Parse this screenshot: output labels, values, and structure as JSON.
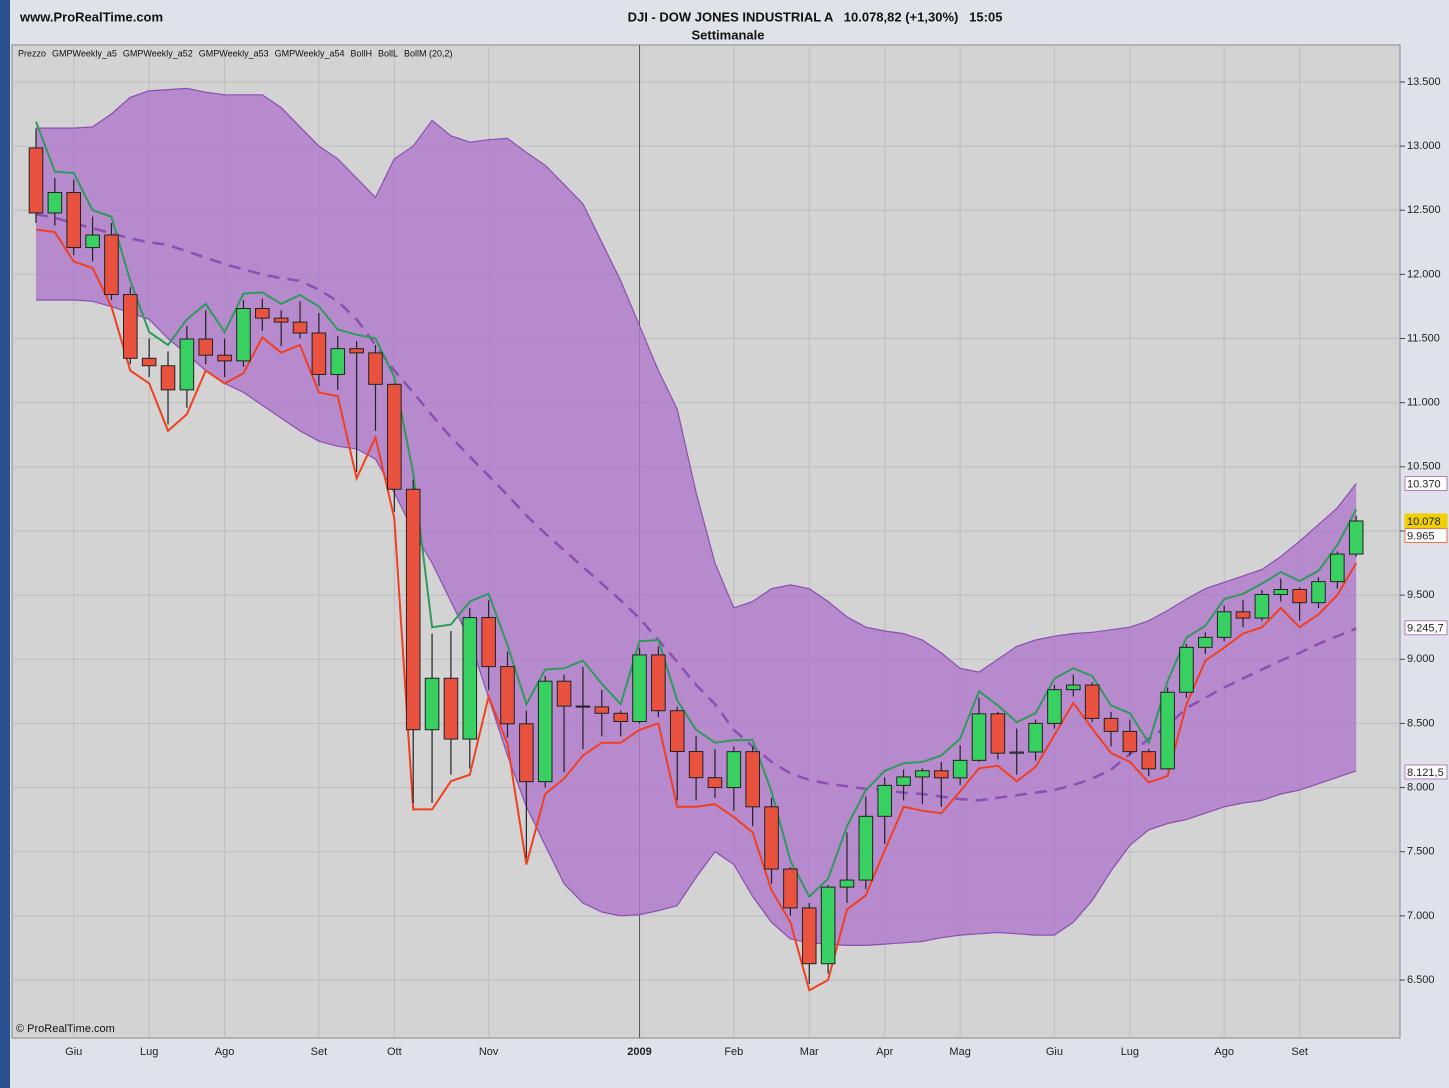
{
  "chart_data": {
    "type": "candlestick",
    "site": "www.ProRealTime.com",
    "title": "DJI - DOW JONES INDUSTRIAL A   10.078,82 (+1,30%)   15:05",
    "subtitle": "Settimanale",
    "watermark": "© ProRealTime.com",
    "categories": [
      null,
      null,
      "Giu",
      null,
      null,
      null,
      "Lug",
      null,
      null,
      null,
      "Ago",
      null,
      null,
      null,
      null,
      "Set",
      null,
      null,
      null,
      "Ott",
      null,
      null,
      null,
      null,
      "Nov",
      null,
      null,
      null,
      null,
      null,
      null,
      null,
      "2009",
      null,
      null,
      null,
      null,
      "Feb",
      null,
      null,
      null,
      "Mar",
      null,
      null,
      null,
      "Apr",
      null,
      null,
      null,
      "Mag",
      null,
      null,
      null,
      null,
      "Giu",
      null,
      null,
      null,
      "Lug",
      null,
      null,
      null,
      null,
      "Ago",
      null,
      null,
      null,
      "Set",
      null,
      null,
      null
    ],
    "ylim": [
      6048,
      13788
    ],
    "yticks": [
      {
        "value": 6500,
        "label": "6.500"
      },
      {
        "value": 7000,
        "label": "7.000"
      },
      {
        "value": 7500,
        "label": "7.500"
      },
      {
        "value": 8000,
        "label": "8.000"
      },
      {
        "value": 8500,
        "label": "8.500"
      },
      {
        "value": 9000,
        "label": "9.000"
      },
      {
        "value": 9500,
        "label": "9.500"
      },
      {
        "value": 10000,
        "label": "10.000"
      },
      {
        "value": 10500,
        "label": "10.500"
      },
      {
        "value": 11000,
        "label": "11.000"
      },
      {
        "value": 11500,
        "label": "11.500"
      },
      {
        "value": 12000,
        "label": "12.000"
      },
      {
        "value": 12500,
        "label": "12.500"
      },
      {
        "value": 13000,
        "label": "13.000"
      },
      {
        "value": 13500,
        "label": "13.500"
      }
    ],
    "grid": true,
    "candles": {
      "name": "Prezzo",
      "up_color": "#38d060",
      "down_color": "#e8523e",
      "open": [
        12986,
        12479,
        12638,
        12209,
        12307,
        11843,
        11346,
        11288,
        11100,
        11496,
        11370,
        11326,
        11734,
        11659,
        11628,
        11543,
        11220,
        11421,
        11388,
        11143,
        10325,
        8451,
        8852,
        8378,
        9325,
        8943,
        8497,
        8046,
        8829,
        8635,
        8629,
        8579,
        8515,
        9034,
        8599,
        8281,
        8077,
        8000,
        8280,
        7850,
        7365,
        7062,
        6627,
        7224,
        7279,
        7776,
        8017,
        8083,
        8131,
        8076,
        8212,
        8575,
        8268,
        8277,
        8500,
        8763,
        8799,
        8539,
        8438,
        8280,
        8146,
        8743,
        9093,
        9171,
        9370,
        9321,
        9505,
        9544,
        9441,
        9605,
        9820
      ],
      "high": [
        13136,
        12750,
        12740,
        12450,
        12400,
        11900,
        11500,
        11400,
        11600,
        11720,
        11500,
        11800,
        11810,
        11720,
        11790,
        11700,
        11520,
        11480,
        11450,
        11150,
        10400,
        9200,
        9220,
        9400,
        9460,
        9060,
        8600,
        8870,
        8880,
        8940,
        8760,
        8600,
        9090,
        9100,
        8630,
        8400,
        8300,
        8320,
        8320,
        7920,
        7380,
        7100,
        7240,
        7650,
        7930,
        8080,
        8140,
        8150,
        8200,
        8330,
        8700,
        8590,
        8460,
        8530,
        8800,
        8880,
        8820,
        8590,
        8530,
        8300,
        8780,
        9120,
        9210,
        9420,
        9460,
        9540,
        9630,
        9560,
        9640,
        9840,
        10120
      ],
      "low": [
        12400,
        12380,
        12150,
        12100,
        11800,
        11300,
        11200,
        10830,
        10960,
        11300,
        11200,
        11280,
        11560,
        11440,
        11500,
        11130,
        11100,
        10460,
        10780,
        10150,
        7880,
        7880,
        8100,
        8150,
        8760,
        8390,
        7450,
        8000,
        8120,
        8300,
        8400,
        8400,
        8500,
        8550,
        7900,
        7900,
        7920,
        7820,
        7700,
        7250,
        7000,
        6470,
        6550,
        7100,
        7210,
        7560,
        7900,
        7870,
        7850,
        8020,
        8200,
        8220,
        8100,
        8210,
        8460,
        8710,
        8510,
        8320,
        8250,
        8090,
        8140,
        8700,
        9040,
        9140,
        9250,
        9300,
        9450,
        9300,
        9400,
        9550,
        9800
      ],
      "close": [
        12479,
        12638,
        12209,
        12307,
        11843,
        11346,
        11288,
        11100,
        11496,
        11370,
        11326,
        11734,
        11659,
        11628,
        11543,
        11220,
        11421,
        11388,
        11143,
        10325,
        8451,
        8852,
        8378,
        9325,
        8943,
        8497,
        8046,
        8829,
        8635,
        8629,
        8579,
        8515,
        9034,
        8599,
        8281,
        8077,
        8000,
        8280,
        7850,
        7365,
        7062,
        6627,
        7224,
        7279,
        7776,
        8017,
        8083,
        8131,
        8076,
        8212,
        8575,
        8268,
        8277,
        8500,
        8763,
        8799,
        8539,
        8438,
        8280,
        8146,
        8743,
        9093,
        9171,
        9370,
        9321,
        9505,
        9544,
        9441,
        9605,
        9820,
        10078
      ]
    },
    "series": [
      {
        "name": "GMPWeekly_a5",
        "color": "#2e9a5c",
        "values": [
          13190,
          12800,
          12790,
          12500,
          12450,
          11950,
          11550,
          11450,
          11650,
          11770,
          11550,
          11850,
          11860,
          11770,
          11840,
          11750,
          11570,
          11530,
          11500,
          11200,
          10450,
          9250,
          9270,
          9450,
          9510,
          9110,
          8650,
          8920,
          8930,
          8990,
          8810,
          8650,
          9140,
          9150,
          8680,
          8450,
          8350,
          8370,
          8370,
          7970,
          7430,
          7150,
          7290,
          7700,
          7980,
          8130,
          8190,
          8200,
          8250,
          8380,
          8750,
          8640,
          8510,
          8580,
          8850,
          8930,
          8870,
          8640,
          8580,
          8350,
          8830,
          9170,
          9260,
          9470,
          9510,
          9590,
          9680,
          9610,
          9690,
          9890,
          10170
        ]
      },
      {
        "name": "GMPWeekly_a53",
        "color": "#f04020",
        "values": [
          12350,
          12330,
          12100,
          12050,
          11750,
          11250,
          11150,
          10780,
          10910,
          11250,
          11150,
          11230,
          11510,
          11390,
          11450,
          11080,
          11050,
          10410,
          10730,
          10100,
          7830,
          7830,
          8050,
          8100,
          8710,
          8340,
          7400,
          7950,
          8070,
          8250,
          8350,
          8350,
          8450,
          8500,
          7850,
          7850,
          7870,
          7770,
          7650,
          7200,
          6950,
          6420,
          6500,
          7050,
          7160,
          7510,
          7850,
          7820,
          7800,
          7970,
          8150,
          8170,
          8050,
          8160,
          8410,
          8660,
          8460,
          8270,
          8200,
          8040,
          8090,
          8650,
          8990,
          9090,
          9200,
          9250,
          9400,
          9250,
          9350,
          9500,
          9750
        ]
      }
    ],
    "legend_only": [
      {
        "name": "GMPWeekly_a52",
        "color": "#3aa86a"
      },
      {
        "name": "GMPWeekly_a54",
        "color": "#e8704a"
      }
    ],
    "bands": {
      "color": "#b07ccb",
      "line_color": "#8a4fb0",
      "upper": {
        "name": "BollH",
        "values": [
          13140,
          13140,
          13140,
          13150,
          13250,
          13380,
          13430,
          13440,
          13450,
          13420,
          13400,
          13400,
          13400,
          13300,
          13150,
          13000,
          12900,
          12750,
          12600,
          12900,
          13000,
          13200,
          13080,
          13030,
          13050,
          13060,
          12950,
          12850,
          12700,
          12550,
          12250,
          11950,
          11600,
          11250,
          10950,
          10300,
          9750,
          9400,
          9450,
          9550,
          9580,
          9550,
          9450,
          9330,
          9250,
          9220,
          9200,
          9150,
          9050,
          8930,
          8900,
          9000,
          9100,
          9150,
          9180,
          9200,
          9210,
          9230,
          9250,
          9300,
          9380,
          9470,
          9550,
          9600,
          9650,
          9700,
          9800,
          9920,
          10050,
          10180,
          10370
        ]
      },
      "lower": {
        "name": "BollL",
        "values": [
          11800,
          11800,
          11800,
          11790,
          11750,
          11700,
          11650,
          11500,
          11380,
          11250,
          11150,
          11080,
          10980,
          10880,
          10780,
          10700,
          10660,
          10640,
          10560,
          10300,
          10000,
          9750,
          9450,
          9150,
          8700,
          8250,
          7850,
          7550,
          7250,
          7100,
          7030,
          7000,
          7010,
          7040,
          7080,
          7300,
          7500,
          7400,
          7150,
          6950,
          6820,
          6790,
          6780,
          6770,
          6770,
          6780,
          6790,
          6800,
          6830,
          6850,
          6860,
          6870,
          6860,
          6850,
          6850,
          6950,
          7120,
          7350,
          7550,
          7670,
          7720,
          7750,
          7800,
          7850,
          7880,
          7900,
          7950,
          7980,
          8030,
          8080,
          8130
        ]
      },
      "middle": {
        "name": "BollM (20,2)",
        "values": [
          12470,
          12440,
          12400,
          12360,
          12320,
          12280,
          12250,
          12230,
          12180,
          12130,
          12080,
          12040,
          12000,
          11970,
          11950,
          11880,
          11790,
          11650,
          11450,
          11250,
          11080,
          10900,
          10730,
          10580,
          10430,
          10280,
          10120,
          9980,
          9850,
          9720,
          9590,
          9460,
          9320,
          9150,
          8980,
          8800,
          8650,
          8450,
          8320,
          8200,
          8110,
          8060,
          8030,
          8010,
          7990,
          7980,
          7960,
          7950,
          7930,
          7910,
          7900,
          7920,
          7940,
          7960,
          7980,
          8020,
          8070,
          8140,
          8260,
          8380,
          8480,
          8620,
          8700,
          8780,
          8850,
          8920,
          8990,
          9050,
          9120,
          9180,
          9240
        ]
      }
    },
    "price_tags": [
      {
        "value": 10370,
        "label": "10.370",
        "color": "#b07ccb"
      },
      {
        "value": 10078,
        "label": "10.078",
        "color": "#f0d000"
      },
      {
        "value": 9965,
        "label": "9.965",
        "color": "#f07050"
      },
      {
        "value": 9245.7,
        "label": "9.245,7",
        "color": "#b07ccb"
      },
      {
        "value": 8121.5,
        "label": "8.121,5",
        "color": "#b07ccb"
      }
    ]
  }
}
